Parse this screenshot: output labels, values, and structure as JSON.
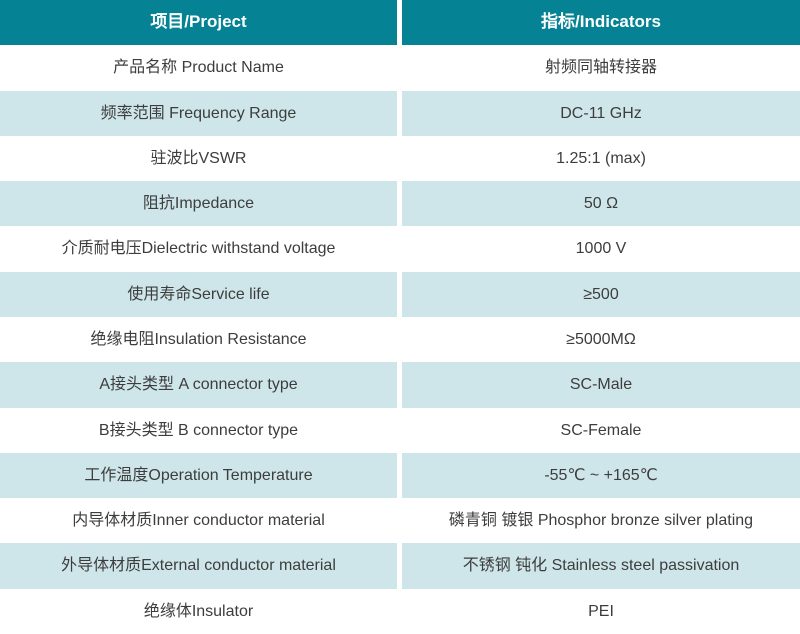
{
  "table": {
    "header": {
      "project": "项目/Project",
      "indicators": "指标/Indicators"
    },
    "rows": [
      {
        "project": "产品名称 Product Name",
        "indicator": "射频同轴转接器"
      },
      {
        "project": "频率范围 Frequency Range",
        "indicator": "DC-11 GHz"
      },
      {
        "project": "驻波比VSWR",
        "indicator": "1.25:1 (max)"
      },
      {
        "project": "阻抗Impedance",
        "indicator": "50 Ω"
      },
      {
        "project": "介质耐电压Dielectric withstand voltage",
        "indicator": "1000 V"
      },
      {
        "project": "使用寿命Service life",
        "indicator": "≥500"
      },
      {
        "project": "绝缘电阻Insulation Resistance",
        "indicator": "≥5000MΩ"
      },
      {
        "project": "A接头类型 A connector type",
        "indicator": "SC-Male"
      },
      {
        "project": "B接头类型 B connector type",
        "indicator": "SC-Female"
      },
      {
        "project": "工作温度Operation Temperature",
        "indicator": "-55℃ ~ +165℃"
      },
      {
        "project": "内导体材质Inner conductor material",
        "indicator": "磷青铜 镀银 Phosphor bronze silver plating"
      },
      {
        "project": "外导体材质External conductor material",
        "indicator": "不锈钢 钝化 Stainless steel passivation"
      },
      {
        "project": "绝缘体Insulator",
        "indicator": "PEI"
      }
    ],
    "colors": {
      "header_bg": "#058394",
      "header_text": "#ffffff",
      "alt_row_bg": "#cee6ea",
      "row_bg": "#ffffff",
      "text": "#3d3d3d"
    }
  }
}
